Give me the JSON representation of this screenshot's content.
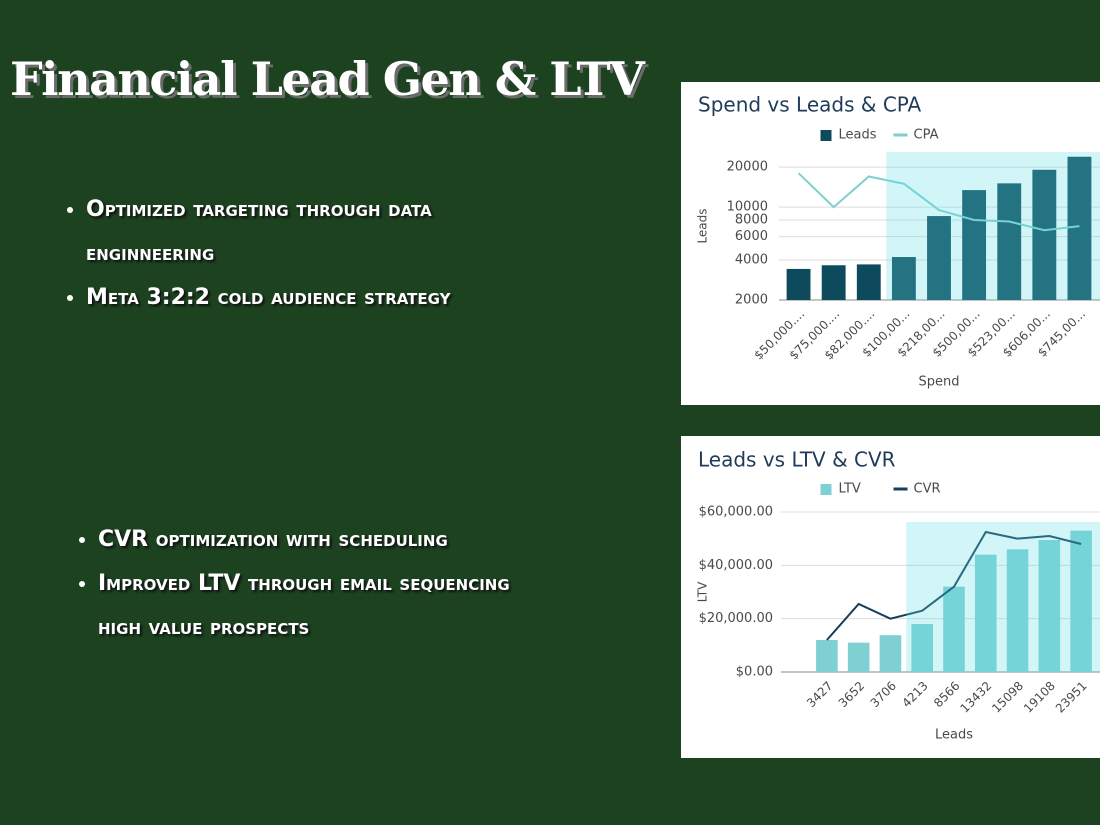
{
  "slide": {
    "title": "Financial Lead Gen & LTV",
    "bullets_top": [
      "Optimized targeting through data enginneering",
      "Meta 3:2:2 cold audience strategy"
    ],
    "bullets_bottom": [
      "CVR optimization with scheduling",
      "Improved LTV through email sequencing high value prospects"
    ]
  },
  "chart_data": [
    {
      "type": "combo",
      "title": "Spend vs Leads & CPA",
      "x_label": "Spend",
      "y_label": "Leads",
      "categories": [
        "$50,000....",
        "$75,000....",
        "$82,000....",
        "$100,00...",
        "$218,00...",
        "$500,00...",
        "$523,00...",
        "$606,00...",
        "$745,00..."
      ],
      "series": [
        {
          "name": "Leads",
          "type": "bar",
          "color": "#0d4a5c",
          "values": [
            3427,
            3652,
            3706,
            4213,
            8566,
            13432,
            15098,
            19108,
            23951
          ]
        },
        {
          "name": "CPA",
          "type": "line",
          "color": "#7fcfd0",
          "values": [
            18000,
            10000,
            17000,
            15000,
            9500,
            8000,
            7800,
            6700,
            7200
          ]
        }
      ],
      "log_scale": true,
      "ylim": [
        2000,
        26000
      ],
      "yticks": [
        2000,
        4000,
        6000,
        8000,
        10000,
        20000
      ],
      "grid": true
    },
    {
      "type": "combo",
      "title": "Leads vs LTV & CVR",
      "x_label": "Leads",
      "y_label": "LTV",
      "categories": [
        "3427",
        "3652",
        "3706",
        "4213",
        "8566",
        "13432",
        "15098",
        "19108",
        "23951"
      ],
      "series": [
        {
          "name": "LTV",
          "type": "bar",
          "color": "#7fd0d2",
          "values": [
            12000,
            11000,
            13800,
            18000,
            32000,
            44000,
            46000,
            49500,
            53000
          ]
        },
        {
          "name": "CVR",
          "type": "line",
          "color": "#173e5a",
          "values": [
            12000,
            25500,
            20000,
            23000,
            32000,
            52500,
            50000,
            51000,
            48000
          ]
        }
      ],
      "log_scale": false,
      "ylim": [
        0,
        60000
      ],
      "yticks": [
        {
          "value": 0,
          "label": "$0.00"
        },
        {
          "value": 20000,
          "label": "$20,000.00"
        },
        {
          "value": 40000,
          "label": "$40,000.00"
        },
        {
          "value": 60000,
          "label": "$60,000.00"
        }
      ],
      "grid": true
    }
  ]
}
